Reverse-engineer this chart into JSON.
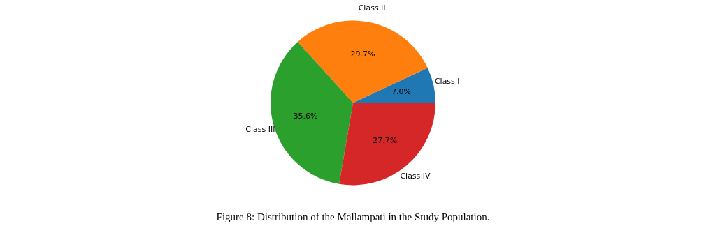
{
  "chart_data": {
    "type": "pie",
    "categories": [
      "Class I",
      "Class II",
      "Class III",
      "Class IV"
    ],
    "values": [
      7.0,
      29.7,
      35.6,
      27.7
    ],
    "colors": [
      "#1f77b4",
      "#ff7f0e",
      "#2ca02c",
      "#d62728"
    ],
    "value_labels": [
      "7.0%",
      "29.7%",
      "35.6%",
      "27.7%"
    ],
    "annotations": [
      "Figure 8: Distribution of the Mallampati in the Study Population."
    ]
  }
}
